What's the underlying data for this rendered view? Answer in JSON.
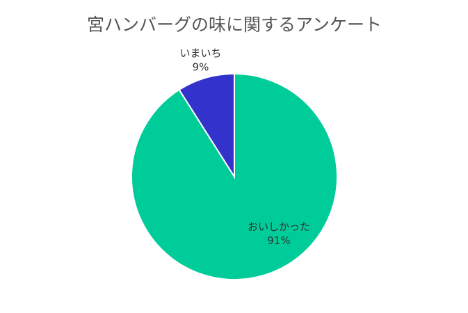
{
  "chart_data": {
    "type": "pie",
    "title": "宮ハンバーグの味に関するアンケート",
    "categories": [
      "おいしかった",
      "いまいち"
    ],
    "values": [
      91,
      9
    ],
    "value_labels": [
      "91%",
      "9%"
    ],
    "colors": [
      "#00cc99",
      "#3333cc"
    ]
  }
}
